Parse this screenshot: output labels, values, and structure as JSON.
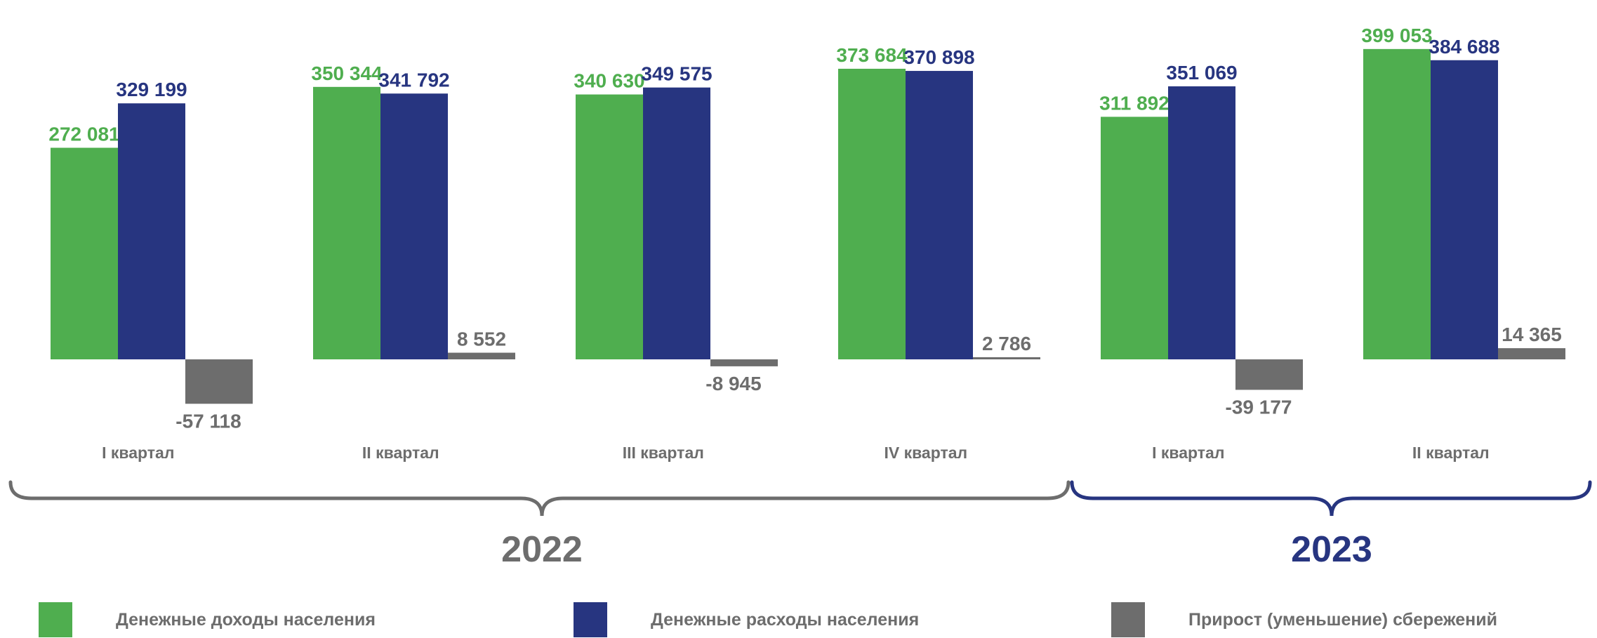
{
  "chart_data": {
    "type": "bar",
    "groups": [
      {
        "label": "I квартал",
        "year": "2022"
      },
      {
        "label": "II квартал",
        "year": "2022"
      },
      {
        "label": "III квартал",
        "year": "2022"
      },
      {
        "label": "IV квартал",
        "year": "2022"
      },
      {
        "label": "I квартал",
        "year": "2023"
      },
      {
        "label": "II квартал",
        "year": "2023"
      }
    ],
    "years": [
      {
        "label": "2022",
        "color": "#6d6d6d"
      },
      {
        "label": "2023",
        "color": "#273580"
      }
    ],
    "series": [
      {
        "name": "Денежные доходы населения",
        "color": "#4fae4f",
        "values": [
          272081,
          350344,
          340630,
          373684,
          311892,
          399053
        ],
        "labels": [
          "272 081",
          "350 344",
          "340 630",
          "373 684",
          "311 892",
          "399 053"
        ]
      },
      {
        "name": "Денежные расходы населения",
        "color": "#273580",
        "values": [
          329199,
          341792,
          349575,
          370898,
          351069,
          384688
        ],
        "labels": [
          "329 199",
          "341 792",
          "349 575",
          "370 898",
          "351 069",
          "384 688"
        ]
      },
      {
        "name": "Прирост (уменьшение) сбережений",
        "color": "#6d6d6d",
        "values": [
          -57118,
          8552,
          -8945,
          2786,
          -39177,
          14365
        ],
        "labels": [
          "-57 118",
          "8 552",
          "-8 945",
          "2 786",
          "-39 177",
          "14 365"
        ]
      }
    ],
    "grid": false,
    "legend_position": "bottom"
  }
}
